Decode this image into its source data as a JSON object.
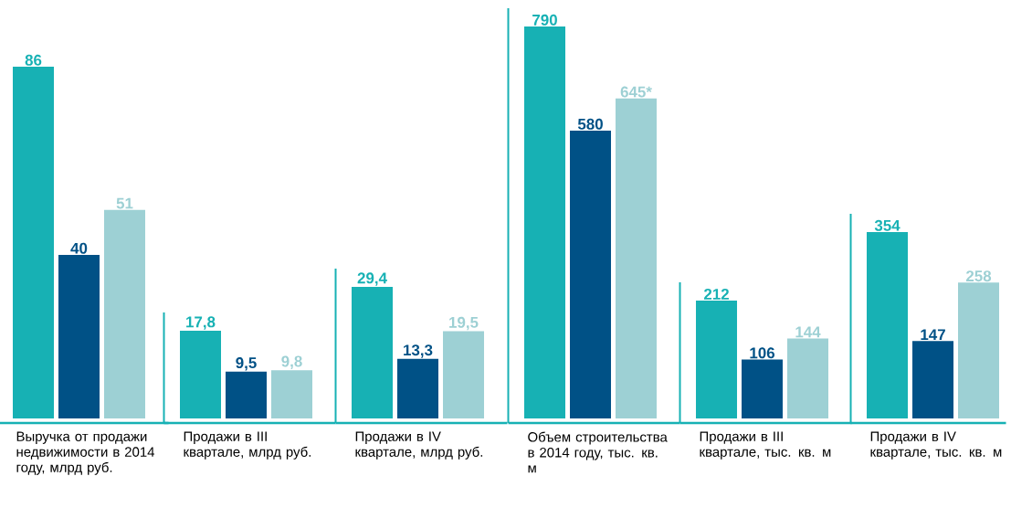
{
  "chart_data": [
    {
      "type": "bar",
      "xlabel": "Выручка от продажи недвижимости в 2014 году, млрд руб.",
      "categories": [
        null,
        null,
        null
      ],
      "values": [
        86,
        40,
        51
      ],
      "colors": [
        "#17b1b4",
        "#005186",
        "#9dd0d4"
      ],
      "value_labels": [
        "86",
        "40",
        "51"
      ]
    },
    {
      "type": "bar",
      "xlabel": "Продажи в III квартале, млрд руб.",
      "categories": [
        null,
        null,
        null
      ],
      "values": [
        17.8,
        9.5,
        9.8
      ],
      "colors": [
        "#17b1b4",
        "#005186",
        "#9dd0d4"
      ],
      "value_labels": [
        "17,8",
        "9,5",
        "9,8"
      ]
    },
    {
      "type": "bar",
      "xlabel": "Продажи в IV квартале, млрд руб.",
      "categories": [
        null,
        null,
        null
      ],
      "values": [
        29.4,
        13.3,
        19.5
      ],
      "colors": [
        "#17b1b4",
        "#005186",
        "#9dd0d4"
      ],
      "value_labels": [
        "29,4",
        "13,3",
        "19,5"
      ]
    },
    {
      "type": "bar",
      "xlabel": "Объем строительства в 2014 году, тыс. кв. м",
      "categories": [
        null,
        null,
        null
      ],
      "values": [
        790,
        580,
        645
      ],
      "colors": [
        "#17b1b4",
        "#005186",
        "#9dd0d4"
      ],
      "value_labels": [
        "790",
        "580",
        "645*"
      ]
    },
    {
      "type": "bar",
      "xlabel": "Продажи в III квартале, тыс. кв. м",
      "categories": [
        null,
        null,
        null
      ],
      "values": [
        212,
        106,
        144
      ],
      "colors": [
        "#17b1b4",
        "#005186",
        "#9dd0d4"
      ],
      "value_labels": [
        "212",
        "106",
        "144"
      ]
    },
    {
      "type": "bar",
      "xlabel": "Продажи в IV квартале, тыс. кв. м",
      "categories": [
        null,
        null,
        null
      ],
      "values": [
        354,
        147,
        258
      ],
      "colors": [
        "#17b1b4",
        "#005186",
        "#9dd0d4"
      ],
      "value_labels": [
        "354",
        "147",
        "258"
      ]
    }
  ]
}
